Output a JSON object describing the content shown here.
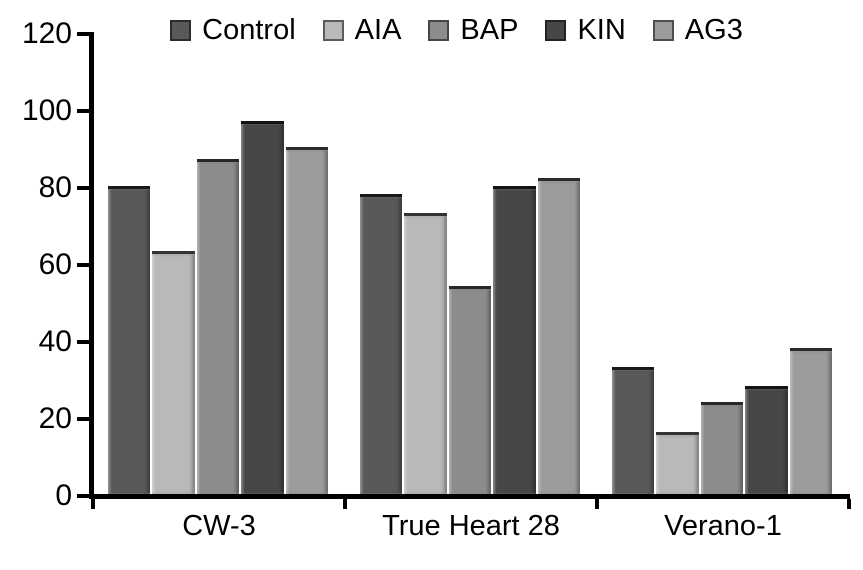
{
  "chart_data": {
    "type": "bar",
    "title": "",
    "xlabel": "",
    "ylabel": "",
    "categories": [
      "CW-3",
      "True Heart 28",
      "Verano-1"
    ],
    "series": [
      {
        "name": "Control",
        "color": "#595959",
        "values": [
          80,
          78,
          33
        ]
      },
      {
        "name": "AIA",
        "color": "#b9b9b9",
        "values": [
          63,
          73,
          16
        ]
      },
      {
        "name": "BAP",
        "color": "#8c8c8c",
        "values": [
          87,
          54,
          24
        ]
      },
      {
        "name": "KIN",
        "color": "#474747",
        "values": [
          97,
          80,
          28
        ]
      },
      {
        "name": "AG3",
        "color": "#9c9c9c",
        "values": [
          90,
          82,
          38
        ]
      }
    ],
    "ylim": [
      0,
      120
    ],
    "yticks": [
      0,
      20,
      40,
      60,
      80,
      100,
      120
    ],
    "grid": "off",
    "legend_position": "top",
    "axis_color": "#000000",
    "text_color": "#000000",
    "background_color": "#ffffff"
  }
}
